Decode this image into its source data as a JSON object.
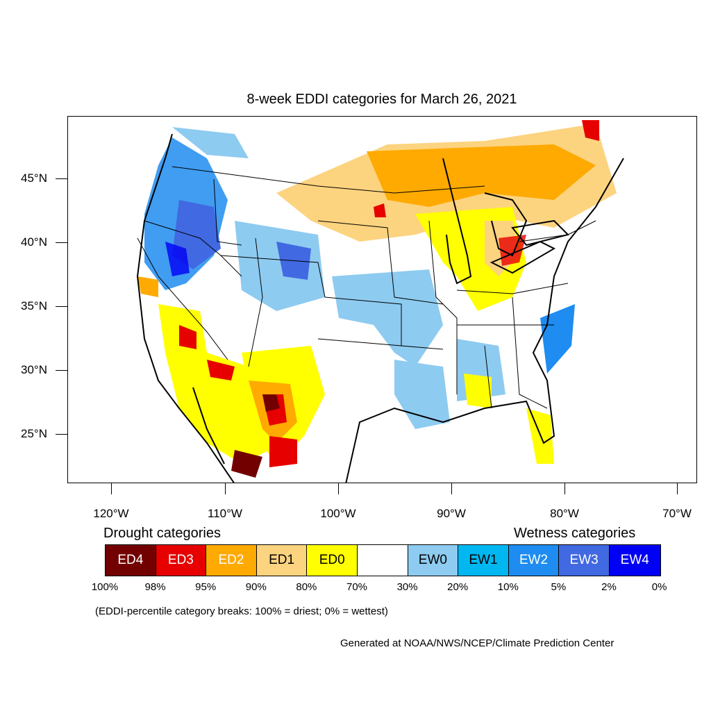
{
  "title": "8-week EDDI categories for March 26, 2021",
  "lat_labels": [
    "45°N",
    "40°N",
    "35°N",
    "30°N",
    "25°N"
  ],
  "lon_labels": [
    "120°W",
    "110°W",
    "100°W",
    "90°W",
    "80°W",
    "70°W"
  ],
  "legend": {
    "drought_heading": "Drought categories",
    "wetness_heading": "Wetness categories",
    "categories": [
      {
        "label": "ED4",
        "color": "#730000",
        "text_color": "#ffffff"
      },
      {
        "label": "ED3",
        "color": "#e60000",
        "text_color": "#ffffff"
      },
      {
        "label": "ED2",
        "color": "#ffaa00",
        "text_color": "#ffffff"
      },
      {
        "label": "ED1",
        "color": "#fcd37f",
        "text_color": "#000000"
      },
      {
        "label": "ED0",
        "color": "#ffff00",
        "text_color": "#000000"
      },
      {
        "label": "",
        "color": "#ffffff",
        "text_color": "#000000"
      },
      {
        "label": "EW0",
        "color": "#8ecbf0",
        "text_color": "#000000"
      },
      {
        "label": "EW1",
        "color": "#00b7f2",
        "text_color": "#000000"
      },
      {
        "label": "EW2",
        "color": "#1e8cf0",
        "text_color": "#ffffff"
      },
      {
        "label": "EW3",
        "color": "#4169e1",
        "text_color": "#ffffff"
      },
      {
        "label": "EW4",
        "color": "#0000f5",
        "text_color": "#ffffff"
      }
    ],
    "percentiles": [
      "100%",
      "98%",
      "95%",
      "90%",
      "80%",
      "70%",
      "30%",
      "20%",
      "10%",
      "5%",
      "2%",
      "0%"
    ]
  },
  "note": "(EDDI-percentile category breaks: 100% = driest; 0% = wettest)",
  "credit": "Generated at NOAA/NWS/NCEP/Climate Prediction Center"
}
